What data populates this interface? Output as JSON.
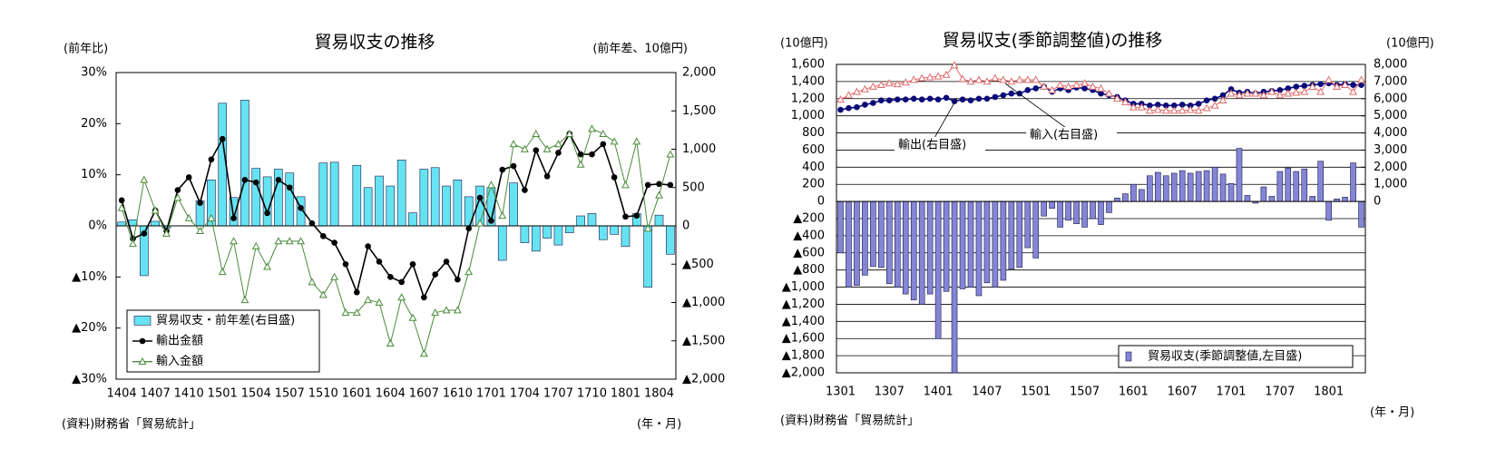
{
  "chart_data": [
    {
      "type": "bar",
      "title": "貿易収支の推移",
      "ylabel": "(前年比)",
      "y2label": "(前年差、10億円)",
      "xlabel": "(年・月)",
      "source": "(資料)財務省「貿易統計」",
      "categories": [
        "1404",
        null,
        null,
        "1407",
        null,
        null,
        "1410",
        null,
        null,
        "1501",
        null,
        null,
        "1504",
        null,
        null,
        "1507",
        null,
        null,
        "1510",
        null,
        null,
        "1601",
        null,
        null,
        "1604",
        null,
        null,
        "1607",
        null,
        null,
        "1610",
        null,
        null,
        "1701",
        null,
        null,
        "1704",
        null,
        null,
        "1707",
        null,
        null,
        "1710",
        null,
        null,
        "1801",
        null,
        null,
        "1804",
        null
      ],
      "ylim": [
        -30,
        30
      ],
      "yticks": [
        {
          "value": 30,
          "label": "30%"
        },
        {
          "value": 20,
          "label": "20%"
        },
        {
          "value": 10,
          "label": "10%"
        },
        {
          "value": 0,
          "label": "0%"
        },
        {
          "value": -10,
          "label": "▲10%"
        },
        {
          "value": -20,
          "label": "▲20%"
        },
        {
          "value": -30,
          "label": "▲30%"
        }
      ],
      "y2lim": [
        -2000,
        2000
      ],
      "y2ticks": [
        {
          "value": 2000,
          "label": "2,000"
        },
        {
          "value": 1500,
          "label": "1,500"
        },
        {
          "value": 1000,
          "label": "1,000"
        },
        500,
        0,
        {
          "value": -500,
          "label": "▲500"
        },
        {
          "value": -1000,
          "label": "▲1,000"
        },
        {
          "value": -1500,
          "label": "▲1,500"
        },
        {
          "value": -2000,
          "label": "▲2,000"
        }
      ],
      "grid": false,
      "legend": "lower left",
      "series": [
        {
          "name": "貿易収支・前年差(右目盛)",
          "type": "bar",
          "axis": "y2",
          "color": "#66e3f2",
          "values": [
            50,
            80,
            -650,
            60,
            -30,
            0,
            0,
            330,
            600,
            1600,
            370,
            1640,
            750,
            640,
            740,
            690,
            380,
            0,
            820,
            830,
            0,
            790,
            500,
            650,
            520,
            860,
            170,
            740,
            760,
            520,
            600,
            380,
            520,
            500,
            -450,
            560,
            -220,
            -330,
            -160,
            -250,
            -90,
            130,
            160,
            -180,
            -110,
            -270,
            160,
            -800,
            140,
            -370
          ]
        },
        {
          "name": "輸出金額",
          "type": "line",
          "marker": "circle",
          "color": "#000000",
          "values": [
            5,
            -2.5,
            -1.5,
            3,
            -1,
            7,
            9.5,
            4.5,
            13,
            17,
            1.5,
            9,
            8.5,
            2.5,
            9,
            7.5,
            3.5,
            0.5,
            -2,
            -3.3,
            -7.5,
            -13,
            -4,
            -7,
            -10,
            -11,
            -7.5,
            -14,
            -9.5,
            -7,
            -10.5,
            -0.5,
            5.5,
            1,
            11,
            11.7,
            7,
            14.8,
            9.7,
            14.3,
            18,
            14,
            14,
            16,
            9.5,
            1.8,
            2,
            8,
            8.2,
            8
          ]
        },
        {
          "name": "輸入金額",
          "type": "line",
          "marker": "triangle",
          "color": "#4a8a3a",
          "values": [
            3.5,
            -3.5,
            9,
            3,
            -1.5,
            5.5,
            1.5,
            -1,
            1.5,
            -9,
            -3,
            -14.5,
            -4,
            -8,
            -3,
            -3,
            -3,
            -11,
            -13.5,
            -10,
            -17,
            -17,
            -14.5,
            -15,
            -23,
            -14,
            -18,
            -25,
            -17,
            -16.5,
            -16.5,
            -9,
            0.5,
            8,
            2,
            16,
            15,
            18,
            15,
            16,
            18,
            12,
            19,
            18,
            16.5,
            8,
            16.5,
            -0.5,
            6,
            14
          ]
        }
      ]
    },
    {
      "type": "bar",
      "title": "貿易収支(季節調整値)の推移",
      "ylabel": "(10億円)",
      "y2label": "(10億円)",
      "xlabel": "(年・月)",
      "source": "(資料)財務省「貿易統計」",
      "categories": [
        "1301",
        null,
        null,
        null,
        null,
        null,
        "1307",
        null,
        null,
        null,
        null,
        null,
        "1401",
        null,
        null,
        null,
        null,
        null,
        "1407",
        null,
        null,
        null,
        null,
        null,
        "1501",
        null,
        null,
        null,
        null,
        null,
        "1507",
        null,
        null,
        null,
        null,
        null,
        "1601",
        null,
        null,
        null,
        null,
        null,
        "1607",
        null,
        null,
        null,
        null,
        null,
        "1701",
        null,
        null,
        null,
        null,
        null,
        "1707",
        null,
        null,
        null,
        null,
        null,
        "1801",
        null,
        null,
        null,
        null
      ],
      "ylim": [
        -2000,
        1600
      ],
      "yticks": [
        {
          "value": 1600,
          "label": "1,600"
        },
        {
          "value": 1400,
          "label": "1,400"
        },
        {
          "value": 1200,
          "label": "1,200"
        },
        {
          "value": 1000,
          "label": "1,000"
        },
        800,
        600,
        400,
        200,
        0,
        {
          "value": -200,
          "label": "▲200"
        },
        {
          "value": -400,
          "label": "▲400"
        },
        {
          "value": -600,
          "label": "▲600"
        },
        {
          "value": -800,
          "label": "▲800"
        },
        {
          "value": -1000,
          "label": "▲1,000"
        },
        {
          "value": -1200,
          "label": "▲1,200"
        },
        {
          "value": -1400,
          "label": "▲1,400"
        },
        {
          "value": -1600,
          "label": "▲1,600"
        },
        {
          "value": -1800,
          "label": "▲1,800"
        },
        {
          "value": -2000,
          "label": "▲2,000"
        }
      ],
      "y2lim": [
        -10000,
        8000
      ],
      "y2ticks": [
        {
          "value": 8000,
          "label": "8,000"
        },
        {
          "value": 7000,
          "label": "7,000"
        },
        {
          "value": 6000,
          "label": "6,000"
        },
        {
          "value": 5000,
          "label": "5,000"
        },
        {
          "value": 4000,
          "label": "4,000"
        },
        {
          "value": 3000,
          "label": "3,000"
        },
        {
          "value": 2000,
          "label": "2,000"
        },
        {
          "value": 1000,
          "label": "1,000"
        },
        0
      ],
      "grid": true,
      "legend": "lower right",
      "series": [
        {
          "name": "貿易収支(季節調整値,左目盛)",
          "type": "bar",
          "axis": "y",
          "color": "#8585d6",
          "values": [
            -600,
            -1000,
            -980,
            -860,
            -760,
            -770,
            -960,
            -1000,
            -1080,
            -1150,
            -1200,
            -1080,
            -1600,
            -1050,
            -2000,
            -1020,
            -1000,
            -1100,
            -950,
            -1000,
            -920,
            -790,
            -770,
            -540,
            -660,
            -170,
            -80,
            -300,
            -220,
            -260,
            -300,
            -200,
            -270,
            -130,
            40,
            90,
            200,
            140,
            300,
            340,
            300,
            330,
            360,
            330,
            350,
            360,
            400,
            320,
            210,
            620,
            70,
            -20,
            170,
            60,
            350,
            390,
            350,
            380,
            60,
            470,
            -220,
            30,
            50,
            450,
            -300
          ]
        },
        {
          "name": "輸出(右目盛)",
          "type": "line",
          "marker": "circle",
          "axis": "y2",
          "color": "#0a0a7a",
          "values": [
            5350,
            5450,
            5500,
            5650,
            5750,
            5900,
            5900,
            5950,
            5950,
            6000,
            5950,
            6000,
            5950,
            6050,
            5850,
            5950,
            5900,
            6000,
            6000,
            6100,
            6200,
            6300,
            6300,
            6500,
            6600,
            6700,
            6400,
            6600,
            6500,
            6650,
            6600,
            6500,
            6300,
            6200,
            6100,
            5900,
            5700,
            5700,
            5600,
            5650,
            5600,
            5600,
            5650,
            5600,
            5700,
            5900,
            6000,
            6200,
            6550,
            6350,
            6400,
            6300,
            6400,
            6450,
            6500,
            6600,
            6700,
            6750,
            6800,
            6850,
            6900,
            6800,
            6850,
            6800,
            6800
          ]
        },
        {
          "name": "輸入(右目盛)",
          "type": "line",
          "marker": "triangle",
          "axis": "y2",
          "color": "#e06a6a",
          "values": [
            5950,
            6200,
            6400,
            6550,
            6700,
            6800,
            6900,
            6850,
            6950,
            7100,
            7200,
            7250,
            7300,
            7400,
            7950,
            7150,
            7000,
            7100,
            7000,
            7200,
            7100,
            7000,
            7100,
            7100,
            7100,
            6700,
            6500,
            6800,
            6700,
            6800,
            6900,
            6700,
            6600,
            6300,
            6000,
            5800,
            5500,
            5500,
            5300,
            5350,
            5300,
            5300,
            5300,
            5350,
            5300,
            5450,
            5600,
            5900,
            6300,
            6200,
            6300,
            6300,
            6200,
            6400,
            6200,
            6300,
            6350,
            6400,
            6700,
            6400,
            7100,
            6700,
            6800,
            6400,
            7100
          ]
        }
      ]
    }
  ]
}
